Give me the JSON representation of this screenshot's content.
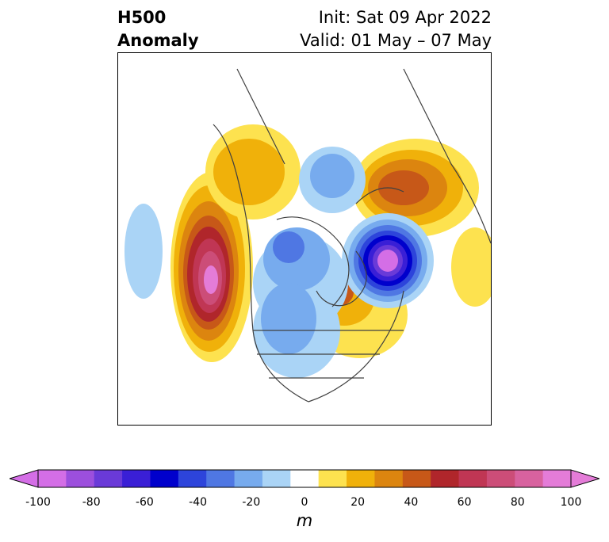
{
  "header": {
    "title_line1": "H500",
    "title_line2": "Anomaly",
    "init": "Init: Sat 09 Apr 2022",
    "valid": "Valid: 01 May – 07 May"
  },
  "colorbar": {
    "unit": "m",
    "ticks": [
      "-100",
      "-80",
      "-60",
      "-40",
      "-20",
      "0",
      "20",
      "40",
      "60",
      "80",
      "100"
    ],
    "tick_values": [
      -100,
      -80,
      -60,
      -40,
      -20,
      0,
      20,
      40,
      60,
      80,
      100
    ],
    "levels": [
      -100,
      -90,
      -80,
      -70,
      -60,
      -50,
      -40,
      -30,
      -20,
      -10,
      10,
      20,
      30,
      40,
      50,
      60,
      70,
      80,
      90,
      100
    ],
    "colors": [
      "#d46ee6",
      "#9c4fdd",
      "#6a3ad8",
      "#3a1fd6",
      "#0000cc",
      "#2d44db",
      "#4f77e3",
      "#77abee",
      "#aad4f6",
      "#ffffff",
      "#fde24f",
      "#f0b10a",
      "#dc850f",
      "#c75818",
      "#b0262b",
      "#c03654",
      "#cc4d78",
      "#d8629f",
      "#e47cd8"
    ]
  },
  "map": {
    "region": "North America / Northern Hemisphere polar view",
    "anomalies": [
      {
        "label": "ridge-west-coast",
        "peak": 80
      },
      {
        "label": "ridge-northeast-canada",
        "peak": 50
      },
      {
        "label": "ridge-scandinavia-russia",
        "peak": 50
      },
      {
        "label": "trough-north-atlantic",
        "peak": -90
      },
      {
        "label": "trough-canada",
        "peak": -40
      },
      {
        "label": "trough-pacific",
        "peak": -20
      }
    ]
  }
}
